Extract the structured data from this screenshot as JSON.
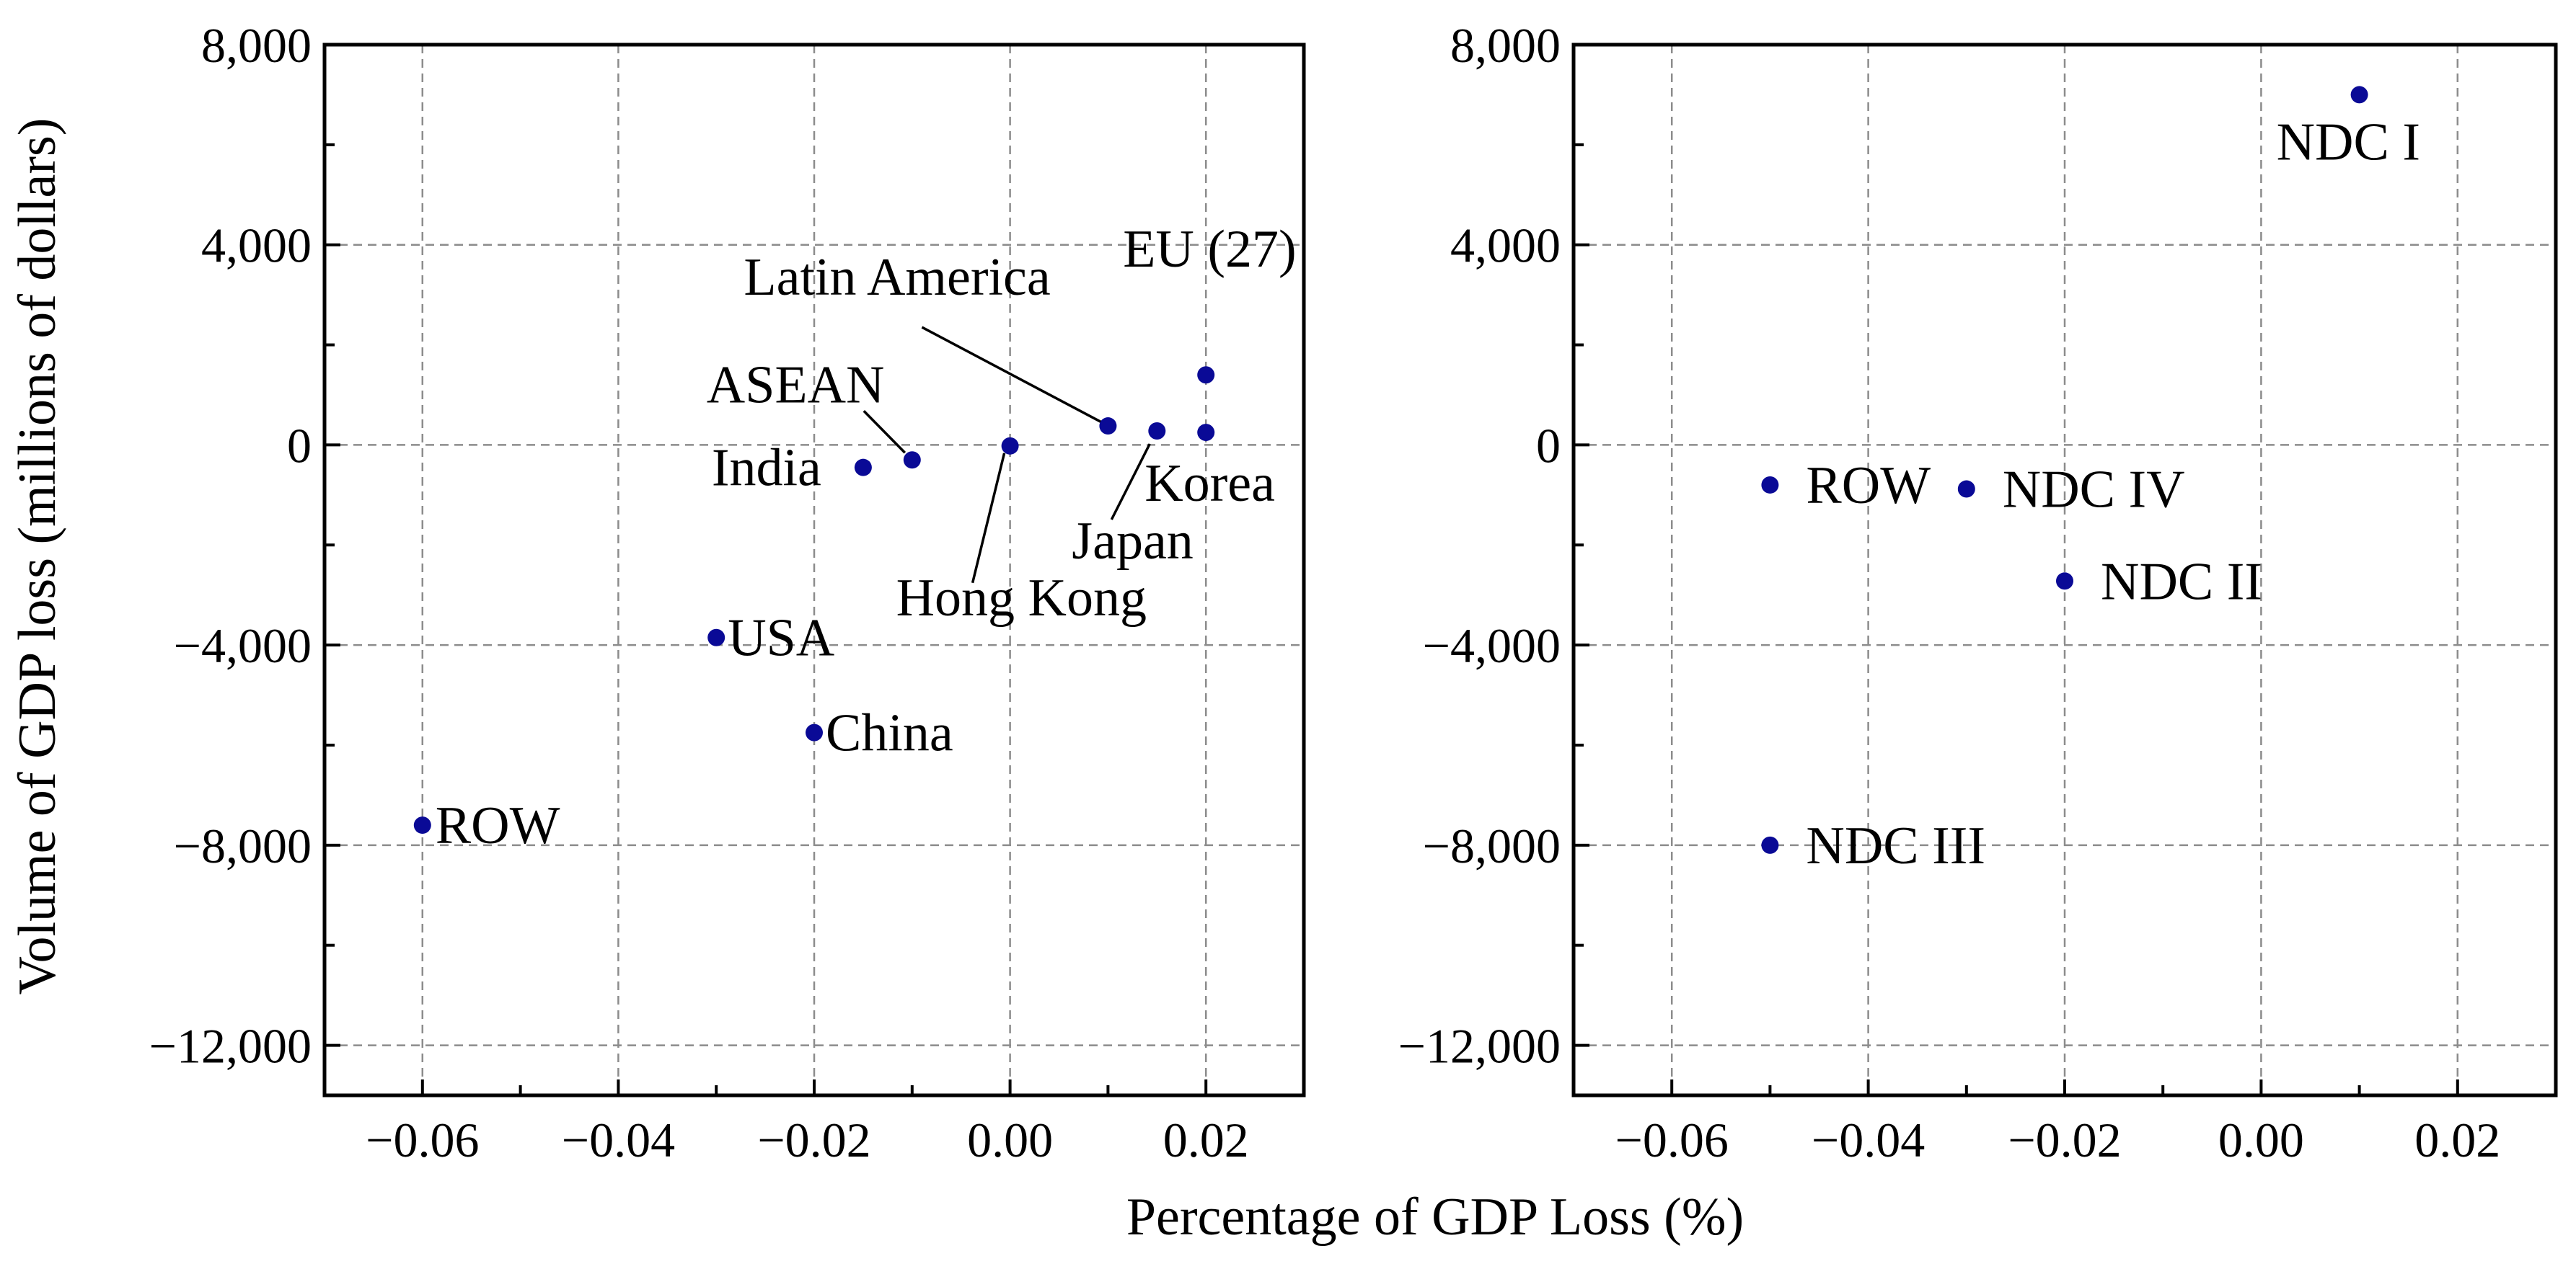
{
  "xlabel": "Percentage of GDP Loss (%)",
  "ylabel": "Volume of GDP loss (millions of dollars)",
  "marker_color": "#0a0a96",
  "chart_data": [
    {
      "type": "scatter",
      "id": "regions",
      "xlim": [
        -0.07,
        0.03
      ],
      "ylim": [
        -13000,
        8000
      ],
      "xticks": [
        -0.06,
        -0.04,
        -0.02,
        0.0,
        0.02
      ],
      "xtick_labels": [
        "−0.06",
        "−0.04",
        "−0.02",
        "0.00",
        "0.02"
      ],
      "yticks": [
        8000,
        4000,
        0,
        -4000,
        -8000,
        -12000
      ],
      "ytick_labels": [
        "8,000",
        "4,000",
        "0",
        "−4,000",
        "−8,000",
        "−12,000"
      ],
      "points": [
        {
          "label": "ROW",
          "x": -0.06,
          "y": -7600
        },
        {
          "label": "USA",
          "x": -0.03,
          "y": -3850
        },
        {
          "label": "China",
          "x": -0.02,
          "y": -5750
        },
        {
          "label": "India",
          "x": -0.015,
          "y": -450
        },
        {
          "label": "ASEAN",
          "x": -0.01,
          "y": -300
        },
        {
          "label": "Hong Kong",
          "x": 0.0,
          "y": -20
        },
        {
          "label": "Latin America",
          "x": 0.01,
          "y": 380
        },
        {
          "label": "Japan",
          "x": 0.015,
          "y": 280
        },
        {
          "label": "Korea",
          "x": 0.02,
          "y": 250
        },
        {
          "label": "EU (27)",
          "x": 0.02,
          "y": 1400
        }
      ]
    },
    {
      "type": "scatter",
      "id": "ndc",
      "xlim": [
        -0.07,
        0.03
      ],
      "ylim": [
        -13000,
        8000
      ],
      "xticks": [
        -0.06,
        -0.04,
        -0.02,
        0.0,
        0.02
      ],
      "xtick_labels": [
        "−0.06",
        "−0.04",
        "−0.02",
        "0.00",
        "0.02"
      ],
      "yticks": [
        8000,
        4000,
        0,
        -4000,
        -8000,
        -12000
      ],
      "ytick_labels": [
        "8,000",
        "4,000",
        "0",
        "−4,000",
        "−8,000",
        "−12,000"
      ],
      "points": [
        {
          "label": "NDC I",
          "x": 0.01,
          "y": 7000
        },
        {
          "label": "ROW",
          "x": -0.05,
          "y": -800
        },
        {
          "label": "NDC IV",
          "x": -0.03,
          "y": -880
        },
        {
          "label": "NDC II",
          "x": -0.02,
          "y": -2720
        },
        {
          "label": "NDC III",
          "x": -0.05,
          "y": -8000
        }
      ]
    }
  ]
}
